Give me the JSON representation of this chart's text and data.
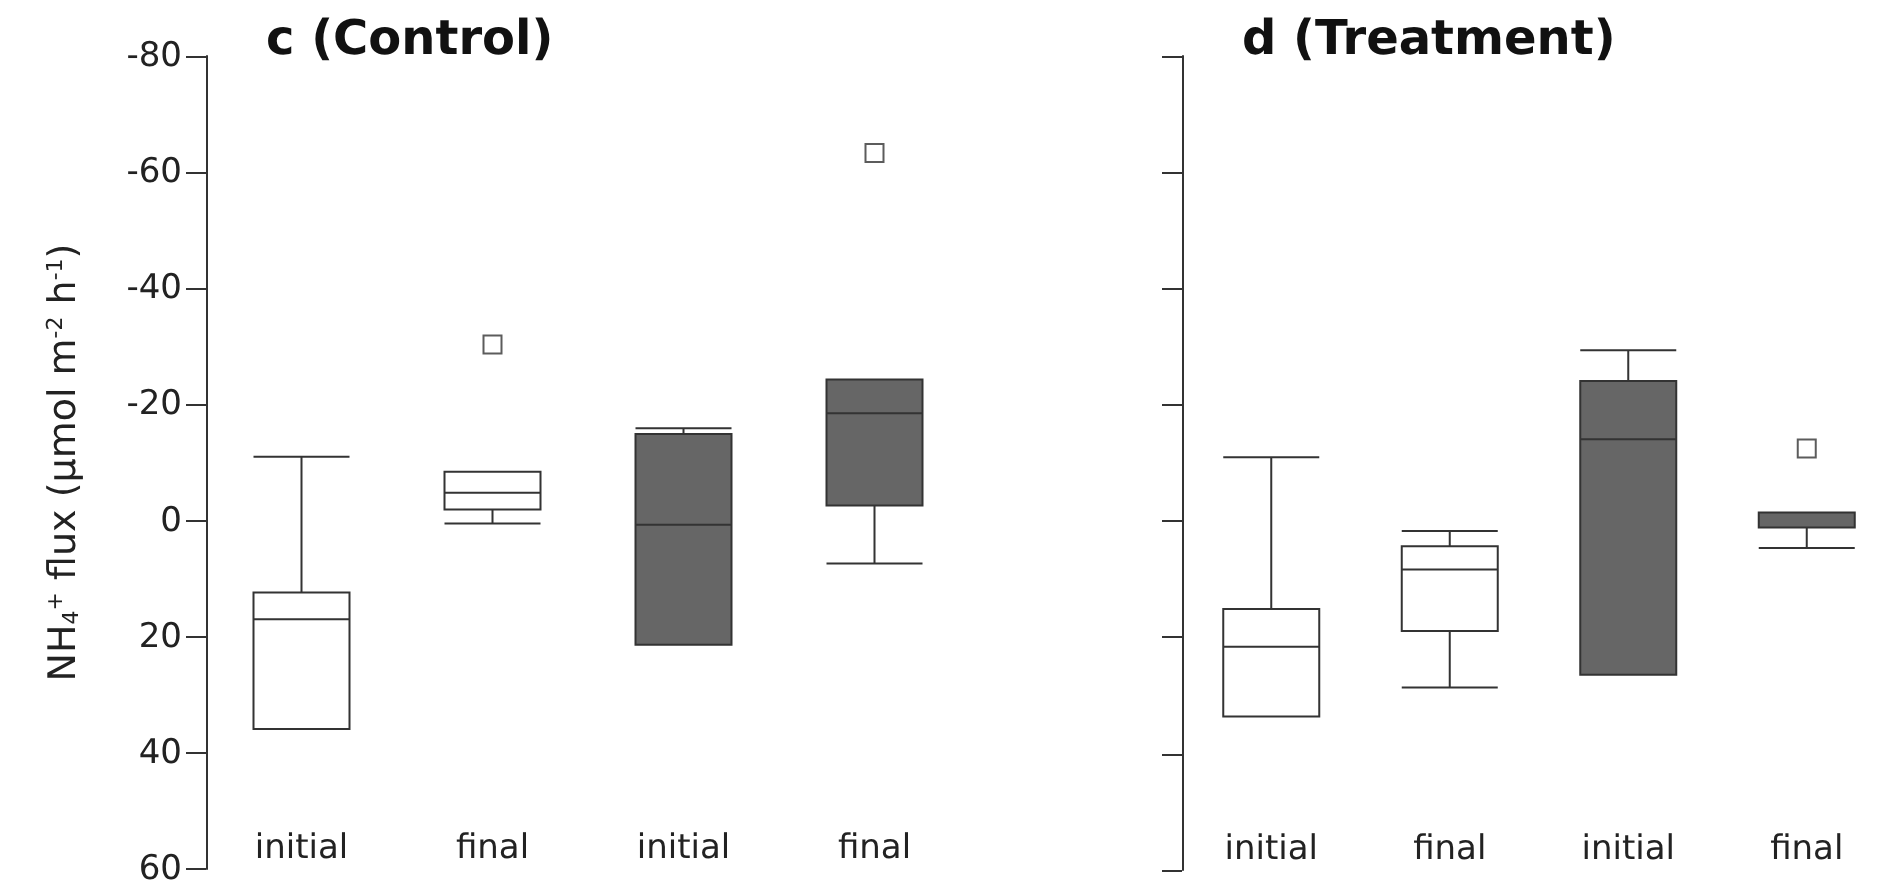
{
  "chart_data": [
    {
      "type": "box",
      "title": "c (Control)",
      "ylabel": "NH$_{4}$$^{+}$ flux (µmol m$^{-2}$ h$^{-1}$)",
      "categories": [
        "initial",
        "final",
        "initial",
        "final"
      ],
      "colors": [
        "#ffffff",
        "#ffffff",
        "#666666",
        "#666666"
      ],
      "boxes": [
        {
          "low": -11,
          "q1": 12.4,
          "median": 17,
          "q3": 35.9,
          "high": 35.9
        },
        {
          "low": -8.4,
          "q1": -8.4,
          "median": -4.8,
          "q3": -1.9,
          "high": 0.5,
          "outliers": [
            -30.3
          ]
        },
        {
          "low": -15.9,
          "q1": -14.9,
          "median": 0.7,
          "q3": 21.4,
          "high": 21.4
        },
        {
          "low": -24.3,
          "q1": -24.3,
          "median": -18.5,
          "q3": -2.6,
          "high": 7.4,
          "outliers": [
            -63.3
          ]
        }
      ],
      "ylim": [
        60,
        -80
      ],
      "yticks": [
        -80,
        -60,
        -40,
        -20,
        0,
        20,
        40,
        60
      ],
      "grid": false
    },
    {
      "type": "box",
      "title": "d (Treatment)",
      "categories": [
        "initial",
        "final",
        "initial",
        "final"
      ],
      "colors": [
        "#ffffff",
        "#ffffff",
        "#666666",
        "#666666"
      ],
      "boxes": [
        {
          "low": -11,
          "q1": 15.1,
          "median": 21.6,
          "q3": 33.6,
          "high": 33.6
        },
        {
          "low": 1.7,
          "q1": 4.3,
          "median": 8.3,
          "q3": 18.9,
          "high": 28.6
        },
        {
          "low": -29.4,
          "q1": -24.1,
          "median": -14.1,
          "q3": 26.4,
          "high": 26.4
        },
        {
          "low": -1.5,
          "q1": -1.5,
          "median": -1.5,
          "q3": 1.1,
          "high": 4.6,
          "outliers": [
            -12.5
          ]
        }
      ],
      "ylim": [
        60,
        -80
      ],
      "yticks": [
        -80,
        -60,
        -40,
        -20,
        0,
        20,
        40,
        60
      ],
      "grid": false,
      "tick_labels": "x"
    }
  ]
}
